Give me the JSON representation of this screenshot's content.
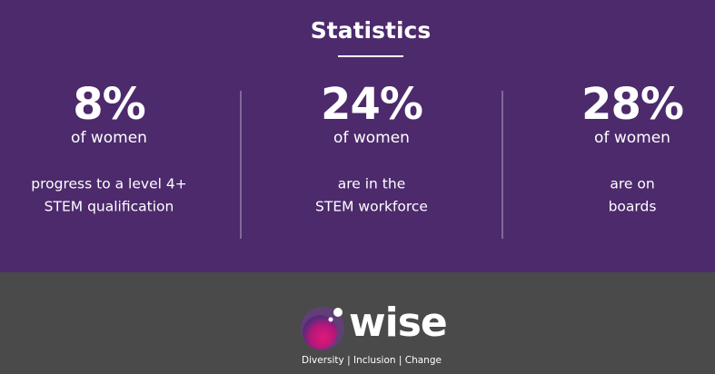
{
  "header": {
    "title": "Statistics"
  },
  "stats": [
    {
      "value": "8%",
      "unit": "of women",
      "description": [
        "progress to a level 4+",
        "STEM qualification"
      ]
    },
    {
      "value": "24%",
      "unit": "of women",
      "description": [
        "are in the",
        "STEM workforce"
      ]
    },
    {
      "value": "28%",
      "unit": "of women",
      "description": [
        "are on",
        "boards"
      ]
    }
  ],
  "footer": {
    "logo": "wise",
    "tagline": "Diversity | Inclusion | Change"
  }
}
